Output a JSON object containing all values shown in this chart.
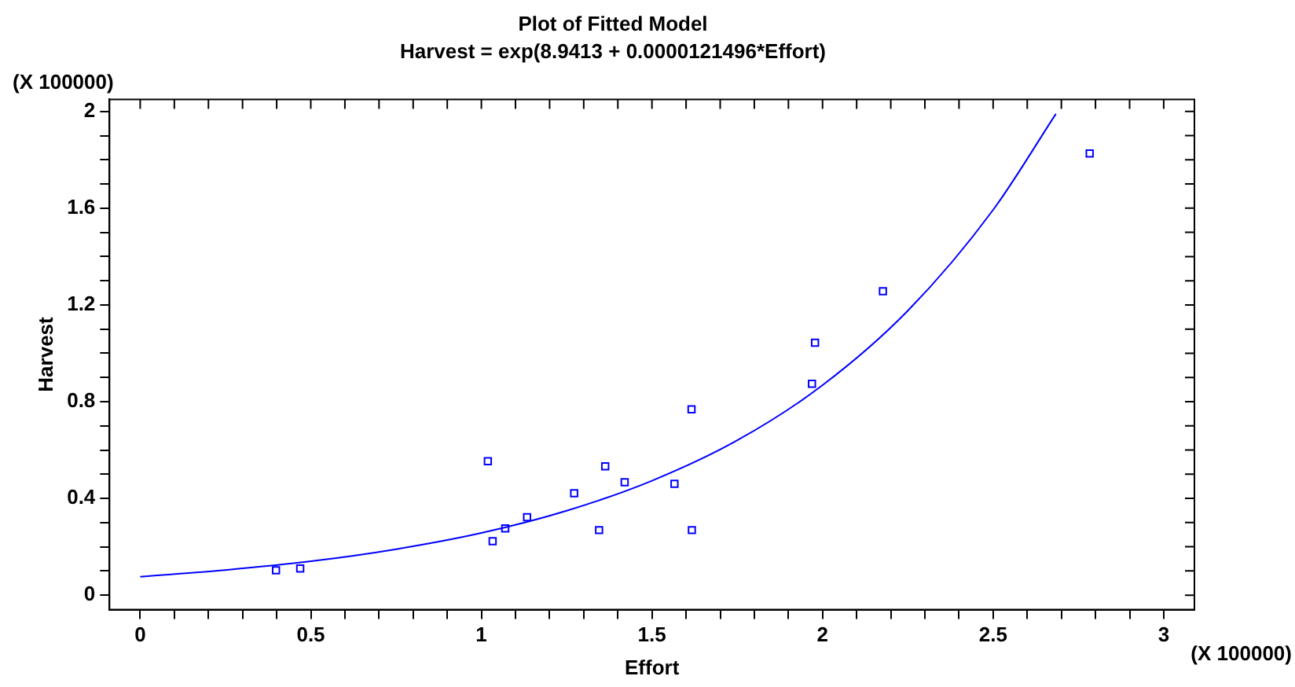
{
  "chart_data": {
    "type": "scatter",
    "title": "Plot of Fitted Model",
    "subtitle": "Harvest = exp(8.9413 + 0.0000121496*Effort)",
    "xlabel": "Effort",
    "ylabel": "Harvest",
    "annotations": [
      "(X 100000)",
      "(X 100000)"
    ],
    "xlim": [
      -0.09,
      3.09
    ],
    "ylim": [
      -0.06,
      2.05
    ],
    "xticks": [
      0,
      {
        "value": 0.1,
        "label": null
      },
      {
        "value": 0.2,
        "label": null
      },
      {
        "value": 0.3,
        "label": null
      },
      {
        "value": 0.4,
        "label": null
      },
      0.5,
      {
        "value": 0.6,
        "label": null
      },
      {
        "value": 0.7,
        "label": null
      },
      {
        "value": 0.8,
        "label": null
      },
      {
        "value": 0.9,
        "label": null
      },
      1,
      {
        "value": 1.1,
        "label": null
      },
      {
        "value": 1.2,
        "label": null
      },
      {
        "value": 1.3,
        "label": null
      },
      {
        "value": 1.4,
        "label": null
      },
      1.5,
      {
        "value": 1.6,
        "label": null
      },
      {
        "value": 1.7,
        "label": null
      },
      {
        "value": 1.8,
        "label": null
      },
      {
        "value": 1.9,
        "label": null
      },
      2,
      {
        "value": 2.1,
        "label": null
      },
      {
        "value": 2.2,
        "label": null
      },
      {
        "value": 2.3,
        "label": null
      },
      {
        "value": 2.4,
        "label": null
      },
      2.5,
      {
        "value": 2.6,
        "label": null
      },
      {
        "value": 2.7,
        "label": null
      },
      {
        "value": 2.8,
        "label": null
      },
      {
        "value": 2.9,
        "label": null
      },
      3
    ],
    "yticks": [
      0,
      {
        "value": 0.1,
        "label": null
      },
      {
        "value": 0.2,
        "label": null
      },
      {
        "value": 0.3,
        "label": null
      },
      0.4,
      {
        "value": 0.5,
        "label": null
      },
      {
        "value": 0.6,
        "label": null
      },
      {
        "value": 0.7,
        "label": null
      },
      0.8,
      {
        "value": 0.9,
        "label": null
      },
      {
        "value": 1.0,
        "label": null
      },
      {
        "value": 1.1,
        "label": null
      },
      1.2,
      {
        "value": 1.3,
        "label": null
      },
      {
        "value": 1.4,
        "label": null
      },
      {
        "value": 1.5,
        "label": null
      },
      1.6,
      {
        "value": 1.7,
        "label": null
      },
      {
        "value": 1.8,
        "label": null
      },
      {
        "value": 1.9,
        "label": null
      },
      2
    ],
    "grid": false,
    "legend": false,
    "series": [
      {
        "type": "scatter",
        "color": "#0000ff",
        "marker": "square",
        "x": [
          0.398,
          0.469,
          1.019,
          1.033,
          1.07,
          1.134,
          1.272,
          1.345,
          1.363,
          1.42,
          1.566,
          1.617,
          1.616,
          1.969,
          1.978,
          2.177,
          2.783
        ],
        "values": [
          0.103,
          0.11,
          0.554,
          0.223,
          0.276,
          0.322,
          0.421,
          0.269,
          0.533,
          0.467,
          0.46,
          0.269,
          0.768,
          0.874,
          1.044,
          1.257,
          1.826
        ]
      },
      {
        "type": "line",
        "color": "#0000ff",
        "marker": "none",
        "line_style": "solid",
        "x": [
          0,
          0.25,
          0.5,
          0.75,
          1,
          1.25,
          1.5,
          1.75,
          2,
          2.25,
          2.5,
          2.684
        ],
        "values": [
          0.076,
          0.104,
          0.14,
          0.19,
          0.257,
          0.349,
          0.473,
          0.64,
          0.868,
          1.176,
          1.593,
          1.99
        ]
      }
    ]
  }
}
